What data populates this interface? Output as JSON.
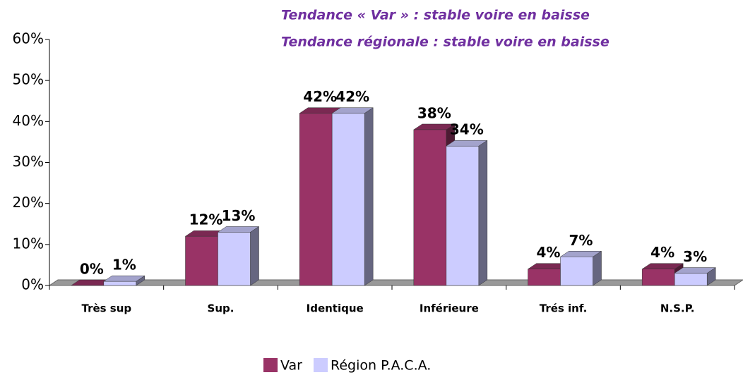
{
  "chart_data": {
    "type": "bar3d",
    "annotations": [
      "Tendance « Var » : stable voire en baisse",
      "Tendance régionale : stable voire en baisse"
    ],
    "categories": [
      "Très sup",
      "Sup.",
      "Identique",
      "Inférieure",
      "Trés inf.",
      "N.S.P."
    ],
    "series": [
      {
        "name": "Var",
        "color": "#993366",
        "values": [
          0,
          12,
          42,
          38,
          4,
          4
        ],
        "value_labels": [
          "0%",
          "12%",
          "42%",
          "38%",
          "4%",
          "4%"
        ]
      },
      {
        "name": "Région P.A.C.A.",
        "color": "#ccccff",
        "values": [
          1,
          13,
          42,
          34,
          7,
          3
        ],
        "value_labels": [
          "1%",
          "13%",
          "42%",
          "34%",
          "7%",
          "3%"
        ]
      }
    ],
    "ylim": [
      0,
      60
    ],
    "yticks": [
      {
        "value": 0,
        "label": "0%"
      },
      {
        "value": 10,
        "label": "10%"
      },
      {
        "value": 20,
        "label": "20%"
      },
      {
        "value": 30,
        "label": "30%"
      },
      {
        "value": 40,
        "label": "40%"
      },
      {
        "value": 50,
        "label": "50%"
      },
      {
        "value": 60,
        "label": "60%"
      }
    ],
    "legend": "bottom"
  }
}
